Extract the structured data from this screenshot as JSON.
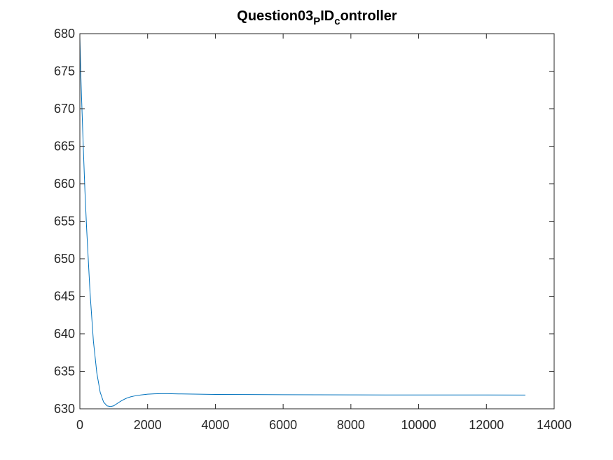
{
  "chart_data": {
    "type": "line",
    "title": {
      "parts": [
        {
          "text": "Question03",
          "sub": false
        },
        {
          "text": "P",
          "sub": true
        },
        {
          "text": "ID",
          "sub": false
        },
        {
          "text": "c",
          "sub": true
        },
        {
          "text": "ontroller",
          "sub": false
        }
      ]
    },
    "xlabel": "",
    "ylabel": "",
    "xlim": [
      0,
      14000
    ],
    "ylim": [
      630,
      680
    ],
    "xticks": [
      0,
      2000,
      4000,
      6000,
      8000,
      10000,
      12000,
      14000
    ],
    "yticks": [
      630,
      635,
      640,
      645,
      650,
      655,
      660,
      665,
      670,
      675,
      680
    ],
    "grid": false,
    "legend": "none",
    "series": [
      {
        "color": "#0072BD",
        "x": [
          0,
          25,
          50,
          100,
          150,
          200,
          300,
          400,
          500,
          600,
          700,
          800,
          900,
          1000,
          1100,
          1200,
          1300,
          1400,
          1500,
          1600,
          1800,
          2000,
          2200,
          2400,
          2600,
          2800,
          3000,
          3500,
          4000,
          5000,
          6000,
          7000,
          8000,
          9000,
          10000,
          11000,
          12000,
          13150
        ],
        "y": [
          679.5,
          675.0,
          671.5,
          665.0,
          659.0,
          654.0,
          645.5,
          639.0,
          634.8,
          632.2,
          630.9,
          630.4,
          630.3,
          630.4,
          630.7,
          631.0,
          631.25,
          631.45,
          631.6,
          631.7,
          631.85,
          631.95,
          632.0,
          632.02,
          632.02,
          632.0,
          631.98,
          631.95,
          631.92,
          631.9,
          631.88,
          631.87,
          631.86,
          631.85,
          631.85,
          631.84,
          631.84,
          631.83
        ]
      }
    ]
  }
}
